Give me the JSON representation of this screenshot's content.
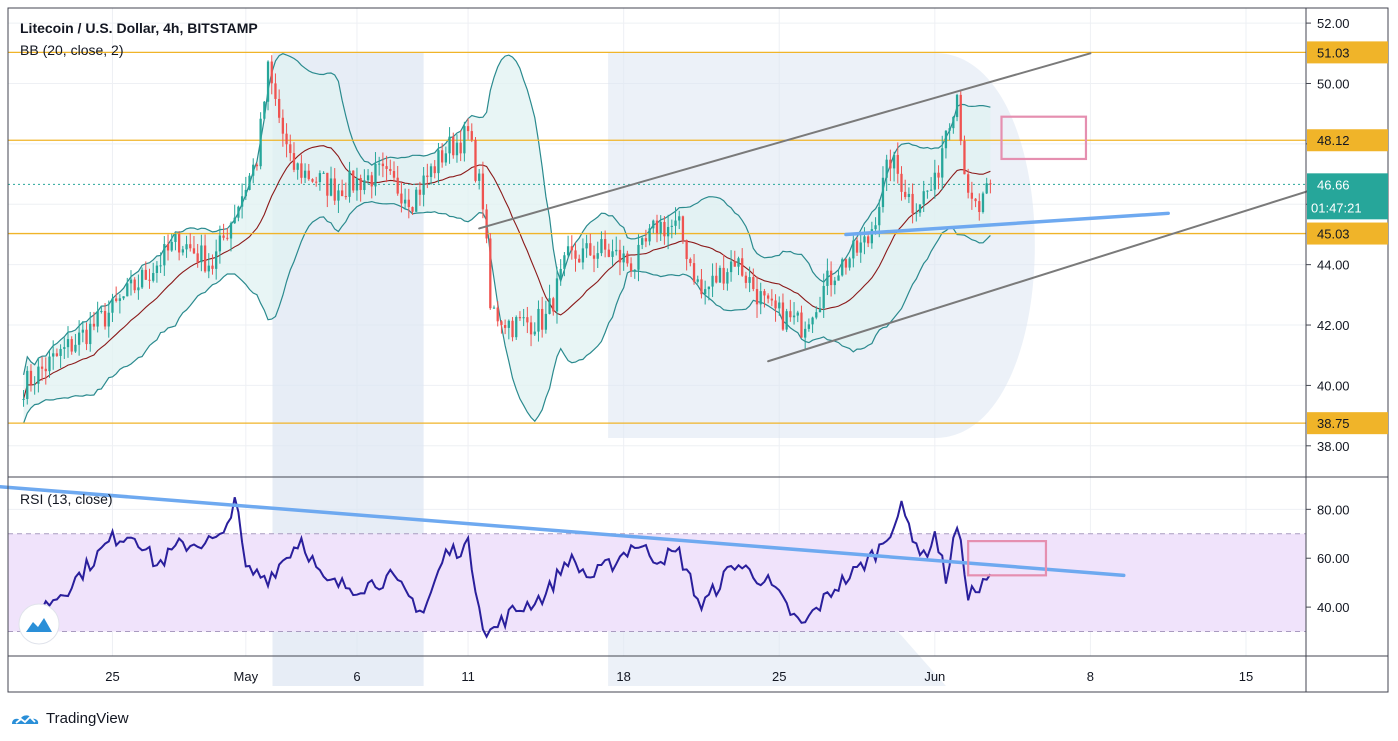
{
  "footer": {
    "brand": "TradingView",
    "logo_icon": "tradingview-logo-icon"
  },
  "chart_data": {
    "type": "candlestick",
    "main": {
      "title": "Litecoin / U.S. Dollar, 4h, BITSTAMP",
      "indicator": "BB (20, close, 2)",
      "ylim": [
        37,
        52.5
      ],
      "ticks": [
        38.0,
        40.0,
        42.0,
        44.0,
        46.0,
        48.0,
        50.0,
        52.0
      ],
      "tick_labels": [
        "38.00",
        "40.00",
        "42.00",
        "44.00",
        "",
        "",
        "50.00",
        "52.00"
      ],
      "levels": [
        {
          "value": 51.03,
          "label": "51.03"
        },
        {
          "value": 48.12,
          "label": "48.12"
        },
        {
          "value": 45.03,
          "label": "45.03"
        },
        {
          "value": 38.75,
          "label": "38.75"
        }
      ],
      "current_price": {
        "value": 46.66,
        "label": "46.66",
        "countdown": "01:47:21"
      },
      "key_points": [
        {
          "day": 0,
          "close": 40.0
        },
        {
          "day": 4,
          "close": 42.5
        },
        {
          "day": 7,
          "close": 44.8
        },
        {
          "day": 8.5,
          "close": 44.0
        },
        {
          "day": 10.5,
          "close": 47.5
        },
        {
          "day": 11,
          "close": 50.4
        },
        {
          "day": 12,
          "close": 47.3
        },
        {
          "day": 14,
          "close": 46.5
        },
        {
          "day": 16,
          "close": 47.0
        },
        {
          "day": 17.5,
          "close": 46.2
        },
        {
          "day": 19,
          "close": 47.8
        },
        {
          "day": 20,
          "close": 48.3
        },
        {
          "day": 20.7,
          "close": 46.0
        },
        {
          "day": 21.0,
          "close": 42.5
        },
        {
          "day": 22,
          "close": 42.0
        },
        {
          "day": 23.5,
          "close": 42.2
        },
        {
          "day": 24.5,
          "close": 44.2
        },
        {
          "day": 26,
          "close": 44.5
        },
        {
          "day": 27.5,
          "close": 44.0
        },
        {
          "day": 28.5,
          "close": 45.3
        },
        {
          "day": 29.5,
          "close": 45.2
        },
        {
          "day": 30.5,
          "close": 43.0
        },
        {
          "day": 32,
          "close": 44.2
        },
        {
          "day": 33.5,
          "close": 42.5
        },
        {
          "day": 35,
          "close": 42.0
        },
        {
          "day": 36.5,
          "close": 43.8
        },
        {
          "day": 38,
          "close": 44.8
        },
        {
          "day": 39,
          "close": 47.5
        },
        {
          "day": 40,
          "close": 46.0
        },
        {
          "day": 41,
          "close": 46.6
        },
        {
          "day": 41.5,
          "close": 48.6
        },
        {
          "day": 42,
          "close": 49.7
        },
        {
          "day": 42.5,
          "close": 46.0
        },
        {
          "day": 43.0,
          "close": 45.8
        },
        {
          "day": 43.6,
          "close": 46.66
        }
      ],
      "trend_lines": [
        {
          "from": [
            20.5,
            45.2
          ],
          "to": [
            48.0,
            51.0
          ],
          "color": "#7a7a7a"
        },
        {
          "from": [
            33.5,
            40.8
          ],
          "to": [
            58.5,
            46.6
          ],
          "color": "#7a7a7a"
        },
        {
          "from": [
            37.0,
            45.0
          ],
          "to": [
            51.5,
            45.7
          ],
          "color": "#6ea9f0"
        }
      ],
      "target_box": {
        "from": [
          44.0,
          48.9
        ],
        "to": [
          47.8,
          47.5
        ],
        "color": "#e58fb0"
      }
    },
    "rsi": {
      "title": "RSI (13, close)",
      "ylim": [
        20,
        92
      ],
      "ticks": [
        40.0,
        60.0,
        80.0
      ],
      "tick_labels": [
        "40.00",
        "60.00",
        "80.00"
      ],
      "band": [
        30,
        70
      ],
      "key_points": [
        {
          "day": 0,
          "value": 34
        },
        {
          "day": 2,
          "value": 48
        },
        {
          "day": 4,
          "value": 68
        },
        {
          "day": 5,
          "value": 70
        },
        {
          "day": 6,
          "value": 57
        },
        {
          "day": 7,
          "value": 65
        },
        {
          "day": 9,
          "value": 68
        },
        {
          "day": 9.5,
          "value": 86
        },
        {
          "day": 10,
          "value": 55
        },
        {
          "day": 11,
          "value": 52
        },
        {
          "day": 12.5,
          "value": 68
        },
        {
          "day": 13.5,
          "value": 50
        },
        {
          "day": 15,
          "value": 48
        },
        {
          "day": 16.5,
          "value": 52
        },
        {
          "day": 18,
          "value": 38
        },
        {
          "day": 19,
          "value": 62
        },
        {
          "day": 20,
          "value": 65
        },
        {
          "day": 20.8,
          "value": 28
        },
        {
          "day": 22,
          "value": 38
        },
        {
          "day": 23.5,
          "value": 45
        },
        {
          "day": 24.5,
          "value": 60
        },
        {
          "day": 25.5,
          "value": 52
        },
        {
          "day": 26.5,
          "value": 58
        },
        {
          "day": 27.5,
          "value": 66
        },
        {
          "day": 28.5,
          "value": 60
        },
        {
          "day": 29.5,
          "value": 62
        },
        {
          "day": 30.5,
          "value": 40
        },
        {
          "day": 32,
          "value": 58
        },
        {
          "day": 33.5,
          "value": 50
        },
        {
          "day": 35,
          "value": 32
        },
        {
          "day": 36.5,
          "value": 48
        },
        {
          "day": 37.5,
          "value": 55
        },
        {
          "day": 38.5,
          "value": 64
        },
        {
          "day": 39.5,
          "value": 80
        },
        {
          "day": 40.5,
          "value": 60
        },
        {
          "day": 41,
          "value": 70
        },
        {
          "day": 41.5,
          "value": 52
        },
        {
          "day": 42,
          "value": 73
        },
        {
          "day": 42.5,
          "value": 46
        },
        {
          "day": 43.0,
          "value": 47
        },
        {
          "day": 43.6,
          "value": 53
        }
      ],
      "trend_line": {
        "from": [
          -3.5,
          91
        ],
        "to": [
          49.5,
          53
        ],
        "color": "#6ea9f0"
      },
      "target_box": {
        "from": [
          42.5,
          67
        ],
        "to": [
          46.0,
          53
        ],
        "color": "#e58fb0"
      }
    },
    "x_axis": {
      "labels": [
        {
          "day": 4.0,
          "label": "25"
        },
        {
          "day": 10.0,
          "label": "May"
        },
        {
          "day": 15.0,
          "label": "6"
        },
        {
          "day": 20.0,
          "label": "11"
        },
        {
          "day": 27.0,
          "label": "18"
        },
        {
          "day": 34.0,
          "label": "25"
        },
        {
          "day": 41.0,
          "label": "Jun"
        },
        {
          "day": 48.0,
          "label": "8"
        },
        {
          "day": 55.0,
          "label": "15"
        }
      ],
      "day_range": [
        -0.7,
        57.7
      ]
    },
    "colors": {
      "up": "#26a69a",
      "down": "#ef5350",
      "bb_mid": "#8b1a1a",
      "bb_band": "#2a8a8e",
      "bb_fill": "#e0f1f1",
      "level": "#f0b429",
      "rsi_line": "#2a1f9c",
      "rsi_fill": "#f0e3fb",
      "price_tag": "#26a69a",
      "watermark": "#dde6f2"
    }
  }
}
